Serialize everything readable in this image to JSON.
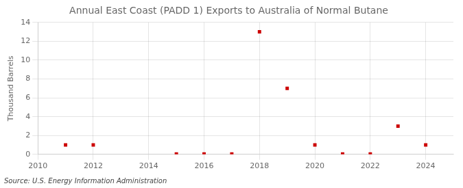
{
  "chart_data": {
    "type": "scatter",
    "title": "Annual East Coast (PADD 1) Exports to Australia of Normal Butane",
    "ylabel": "Thousand Barrels",
    "annotations": [
      "Source: U.S. Energy Information Administration"
    ],
    "x": [
      2011,
      2012,
      2015,
      2016,
      2017,
      2018,
      2019,
      2020,
      2021,
      2022,
      2023,
      2024
    ],
    "values": [
      1,
      1,
      0.04,
      0.04,
      0.04,
      13,
      7,
      1,
      0.04,
      0.04,
      3,
      1
    ],
    "color": "#cc0000",
    "marker": "square",
    "xlim": [
      2010,
      2025
    ],
    "ylim": [
      0,
      14
    ],
    "xticks": [
      2010,
      2012,
      2014,
      2016,
      2018,
      2020,
      2022,
      2024
    ],
    "yticks": [
      0,
      2,
      4,
      6,
      8,
      10,
      12,
      14
    ],
    "grid": true
  }
}
